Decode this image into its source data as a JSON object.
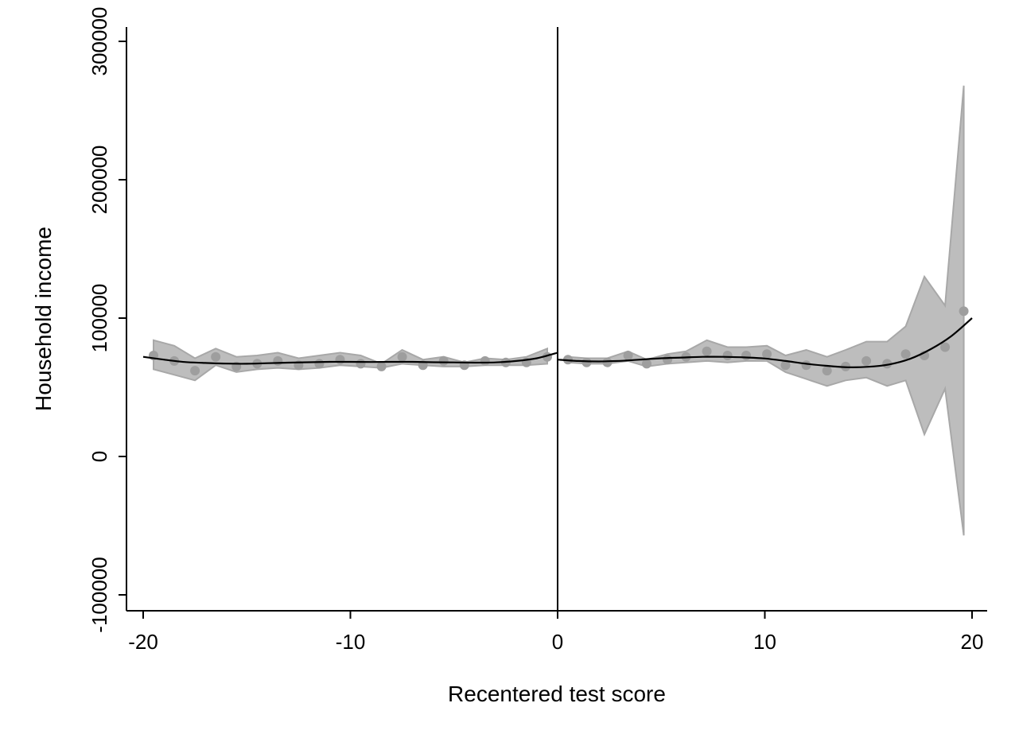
{
  "chart_data": {
    "type": "scatter",
    "xlabel": "Recentered test score",
    "ylabel": "Household income",
    "xlim": [
      -20.8,
      20.8
    ],
    "ylim": [
      -111000,
      311000
    ],
    "x_ticks": [
      -20,
      -10,
      0,
      10,
      20
    ],
    "x_tick_labels": [
      "-20",
      "-10",
      "0",
      "10",
      "20"
    ],
    "y_ticks": [
      -100000,
      0,
      100000,
      200000,
      300000
    ],
    "y_tick_labels": [
      "-100000",
      "0",
      "100000",
      "200000",
      "300000"
    ],
    "cutoff_x": 0,
    "grid": false,
    "colors": {
      "points": "#9e9e9e",
      "ci_band": "#bdbdbd",
      "ci_edge": "#a8a8a8",
      "fit_line": "#000000",
      "cutoff_line": "#000000",
      "axis": "#000000"
    },
    "series": [
      {
        "kind": "binned_means",
        "x": [
          -19.5,
          -18.5,
          -17.5,
          -16.5,
          -15.5,
          -14.5,
          -13.5,
          -12.5,
          -11.5,
          -10.5,
          -9.5,
          -8.5,
          -7.5,
          -6.5,
          -5.5,
          -4.5,
          -3.5,
          -2.5,
          -1.5,
          -0.5,
          0.5,
          1.4,
          2.4,
          3.4,
          4.3,
          5.3,
          6.2,
          7.2,
          8.2,
          9.1,
          10.1,
          11.0,
          12.0,
          13.0,
          13.9,
          14.9,
          15.9,
          16.8,
          17.7,
          18.7,
          19.6
        ],
        "y": [
          73000,
          69000,
          62000,
          72000,
          65000,
          67000,
          69000,
          66000,
          67000,
          70000,
          67000,
          65000,
          72000,
          66000,
          69000,
          66000,
          69000,
          68000,
          68000,
          72000,
          70000,
          68000,
          68000,
          73000,
          67000,
          70000,
          72000,
          76000,
          73000,
          73000,
          74000,
          66000,
          66000,
          62000,
          65000,
          69000,
          67000,
          74000,
          73000,
          79000,
          105000
        ]
      },
      {
        "kind": "ci_band",
        "x": [
          -19.5,
          -18.5,
          -17.5,
          -16.5,
          -15.5,
          -14.5,
          -13.5,
          -12.5,
          -11.5,
          -10.5,
          -9.5,
          -8.5,
          -7.5,
          -6.5,
          -5.5,
          -4.5,
          -3.5,
          -2.5,
          -1.5,
          -0.5,
          0.5,
          1.4,
          2.4,
          3.4,
          4.3,
          5.3,
          6.2,
          7.2,
          8.2,
          9.1,
          10.1,
          11.0,
          12.0,
          13.0,
          13.9,
          14.9,
          15.9,
          16.8,
          17.7,
          18.7,
          19.6
        ],
        "lower": [
          63000,
          59000,
          55000,
          66000,
          61000,
          63000,
          64000,
          63000,
          64000,
          66000,
          65000,
          64000,
          67000,
          66000,
          65000,
          65000,
          66000,
          66000,
          66000,
          67000,
          68000,
          67000,
          67000,
          69000,
          65000,
          67000,
          68000,
          69000,
          68000,
          69000,
          69000,
          61000,
          56000,
          51000,
          55000,
          57000,
          51000,
          55000,
          16000,
          49000,
          -57000
        ],
        "upper": [
          84000,
          80000,
          71000,
          78000,
          72000,
          73000,
          75000,
          71000,
          73000,
          75000,
          73000,
          67000,
          77000,
          70000,
          72000,
          68000,
          71000,
          70000,
          72000,
          78000,
          72000,
          71000,
          71000,
          76000,
          70000,
          74000,
          76000,
          84000,
          79000,
          79000,
          80000,
          73000,
          77000,
          72000,
          77000,
          83000,
          83000,
          94000,
          130000,
          109000,
          268000
        ]
      },
      {
        "kind": "polynomial_fit_left",
        "x": [
          -20,
          -19,
          -18,
          -17,
          -16,
          -15,
          -14,
          -13,
          -12,
          -11,
          -10,
          -9,
          -8,
          -7,
          -6,
          -5,
          -4,
          -3,
          -2,
          -1,
          0
        ],
        "y": [
          72000,
          70000,
          68300,
          67600,
          67100,
          67000,
          67400,
          67800,
          68100,
          68400,
          68400,
          68300,
          68400,
          68400,
          68100,
          68000,
          67800,
          68000,
          69000,
          71000,
          75000
        ]
      },
      {
        "kind": "polynomial_fit_right",
        "x": [
          0,
          1,
          2,
          3,
          4,
          5,
          6,
          7,
          8,
          9,
          10,
          11,
          12,
          13,
          14,
          15,
          16,
          17,
          18,
          19,
          20
        ],
        "y": [
          70000,
          69000,
          68700,
          69100,
          70000,
          71000,
          71500,
          72000,
          72000,
          71600,
          70800,
          69000,
          67000,
          65500,
          64500,
          64800,
          66500,
          70500,
          77500,
          87000,
          100000
        ]
      }
    ]
  }
}
